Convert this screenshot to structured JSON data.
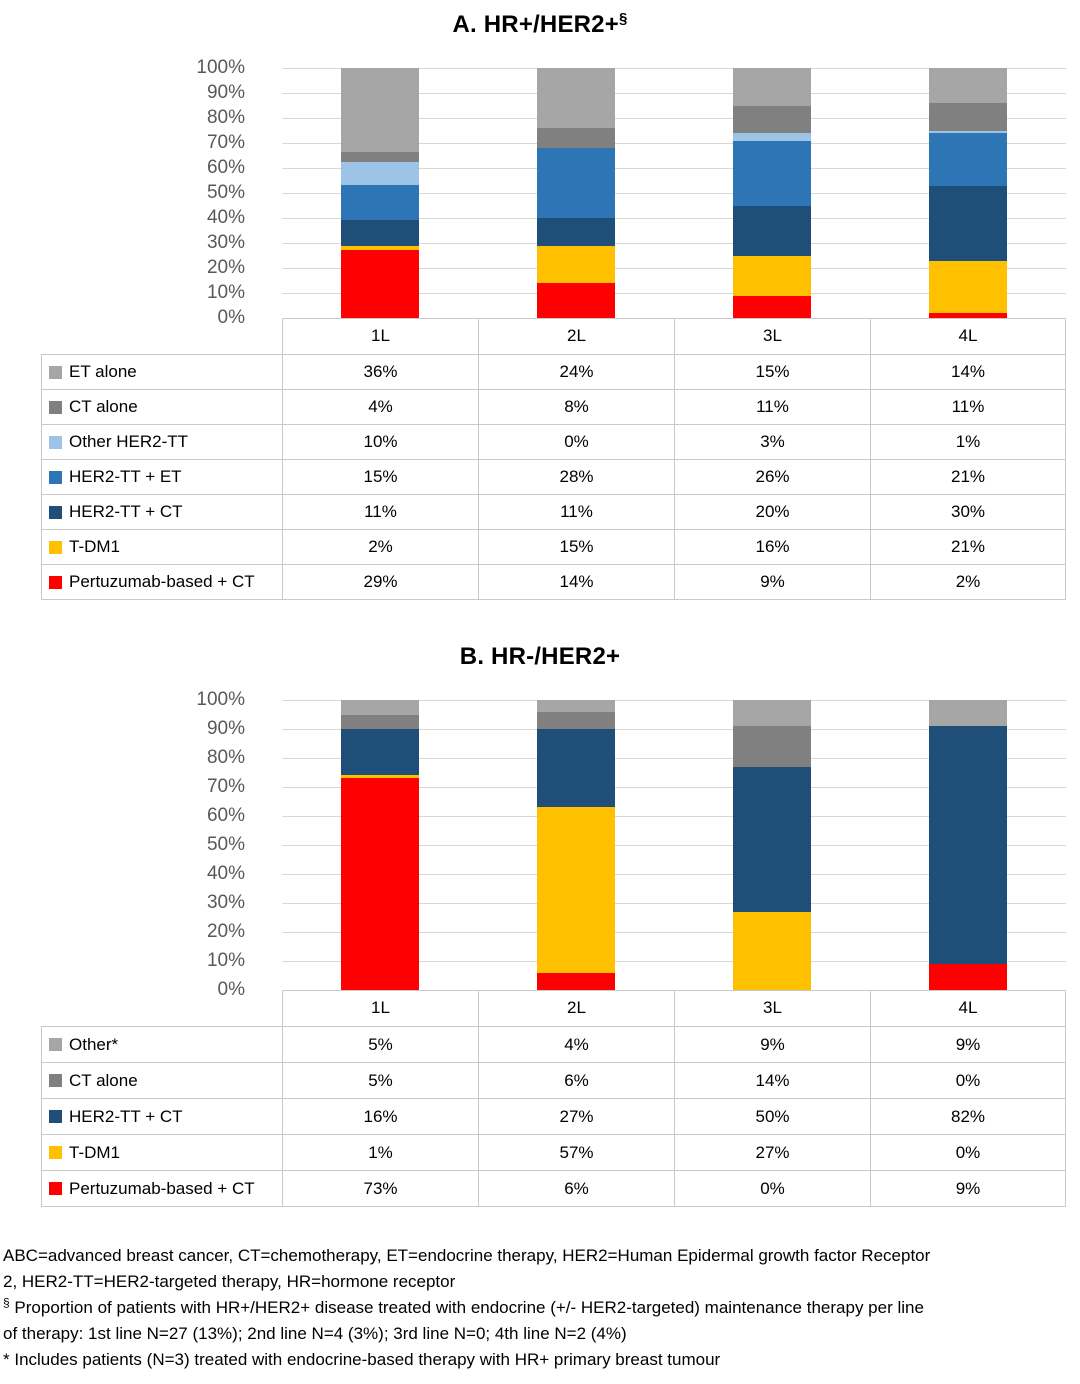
{
  "chart_data": [
    {
      "panel": "A",
      "type": "bar",
      "stacked": true,
      "units": "percent",
      "title": "A. HR+/HER2+",
      "title_superscript": "§",
      "categories": [
        "1L",
        "2L",
        "3L",
        "4L"
      ],
      "y_ticks": [
        "100%",
        "90%",
        "80%",
        "70%",
        "60%",
        "50%",
        "40%",
        "30%",
        "20%",
        "10%",
        "0%"
      ],
      "ylim": [
        0,
        100
      ],
      "grid": true,
      "legend_position": "table-left",
      "series": [
        {
          "name": "ET alone",
          "color": "#A6A6A6",
          "values": [
            36,
            24,
            15,
            14
          ]
        },
        {
          "name": "CT alone",
          "color": "#808080",
          "values": [
            4,
            8,
            11,
            11
          ]
        },
        {
          "name": "Other HER2-TT",
          "color": "#9DC3E6",
          "values": [
            10,
            0,
            3,
            1
          ]
        },
        {
          "name": "HER2-TT + ET",
          "color": "#2E75B6",
          "values": [
            15,
            28,
            26,
            21
          ]
        },
        {
          "name": "HER2-TT + CT",
          "color": "#1F4E79",
          "values": [
            11,
            11,
            20,
            30
          ]
        },
        {
          "name": "T-DM1",
          "color": "#FFC000",
          "values": [
            2,
            15,
            16,
            21
          ]
        },
        {
          "name": "Pertuzumab-based + CT",
          "color": "#FF0000",
          "values": [
            29,
            14,
            9,
            2
          ]
        }
      ]
    },
    {
      "panel": "B",
      "type": "bar",
      "stacked": true,
      "units": "percent",
      "title": "B. HR-/HER2+",
      "title_superscript": "",
      "categories": [
        "1L",
        "2L",
        "3L",
        "4L"
      ],
      "y_ticks": [
        "100%",
        "90%",
        "80%",
        "70%",
        "60%",
        "50%",
        "40%",
        "30%",
        "20%",
        "10%",
        "0%"
      ],
      "ylim": [
        0,
        100
      ],
      "grid": true,
      "legend_position": "table-left",
      "series": [
        {
          "name": "Other*",
          "color": "#A6A6A6",
          "values": [
            5,
            4,
            9,
            9
          ]
        },
        {
          "name": "CT alone",
          "color": "#808080",
          "values": [
            5,
            6,
            14,
            0
          ]
        },
        {
          "name": "HER2-TT + CT",
          "color": "#1F4E79",
          "values": [
            16,
            27,
            50,
            82
          ]
        },
        {
          "name": "T-DM1",
          "color": "#FFC000",
          "values": [
            1,
            57,
            27,
            0
          ]
        },
        {
          "name": "Pertuzumab-based + CT",
          "color": "#FF0000",
          "values": [
            73,
            6,
            0,
            9
          ]
        }
      ]
    }
  ],
  "footnotes": [
    {
      "marker": "",
      "text": "ABC=advanced breast cancer, CT=chemotherapy, ET=endocrine therapy, HER2=Human Epidermal growth factor Receptor\n2, HER2-TT=HER2-targeted therapy, HR=hormone receptor"
    },
    {
      "marker": "§",
      "text": " Proportion of patients with HR+/HER2+ disease treated with endocrine (+/- HER2-targeted) maintenance therapy per line\nof therapy: 1st line N=27 (13%); 2nd line N=4 (3%); 3rd line N=0; 4th line N=2 (4%)"
    },
    {
      "marker": "*",
      "text": " Includes patients (N=3) treated with endocrine-based therapy with HR+ primary breast tumour"
    }
  ]
}
